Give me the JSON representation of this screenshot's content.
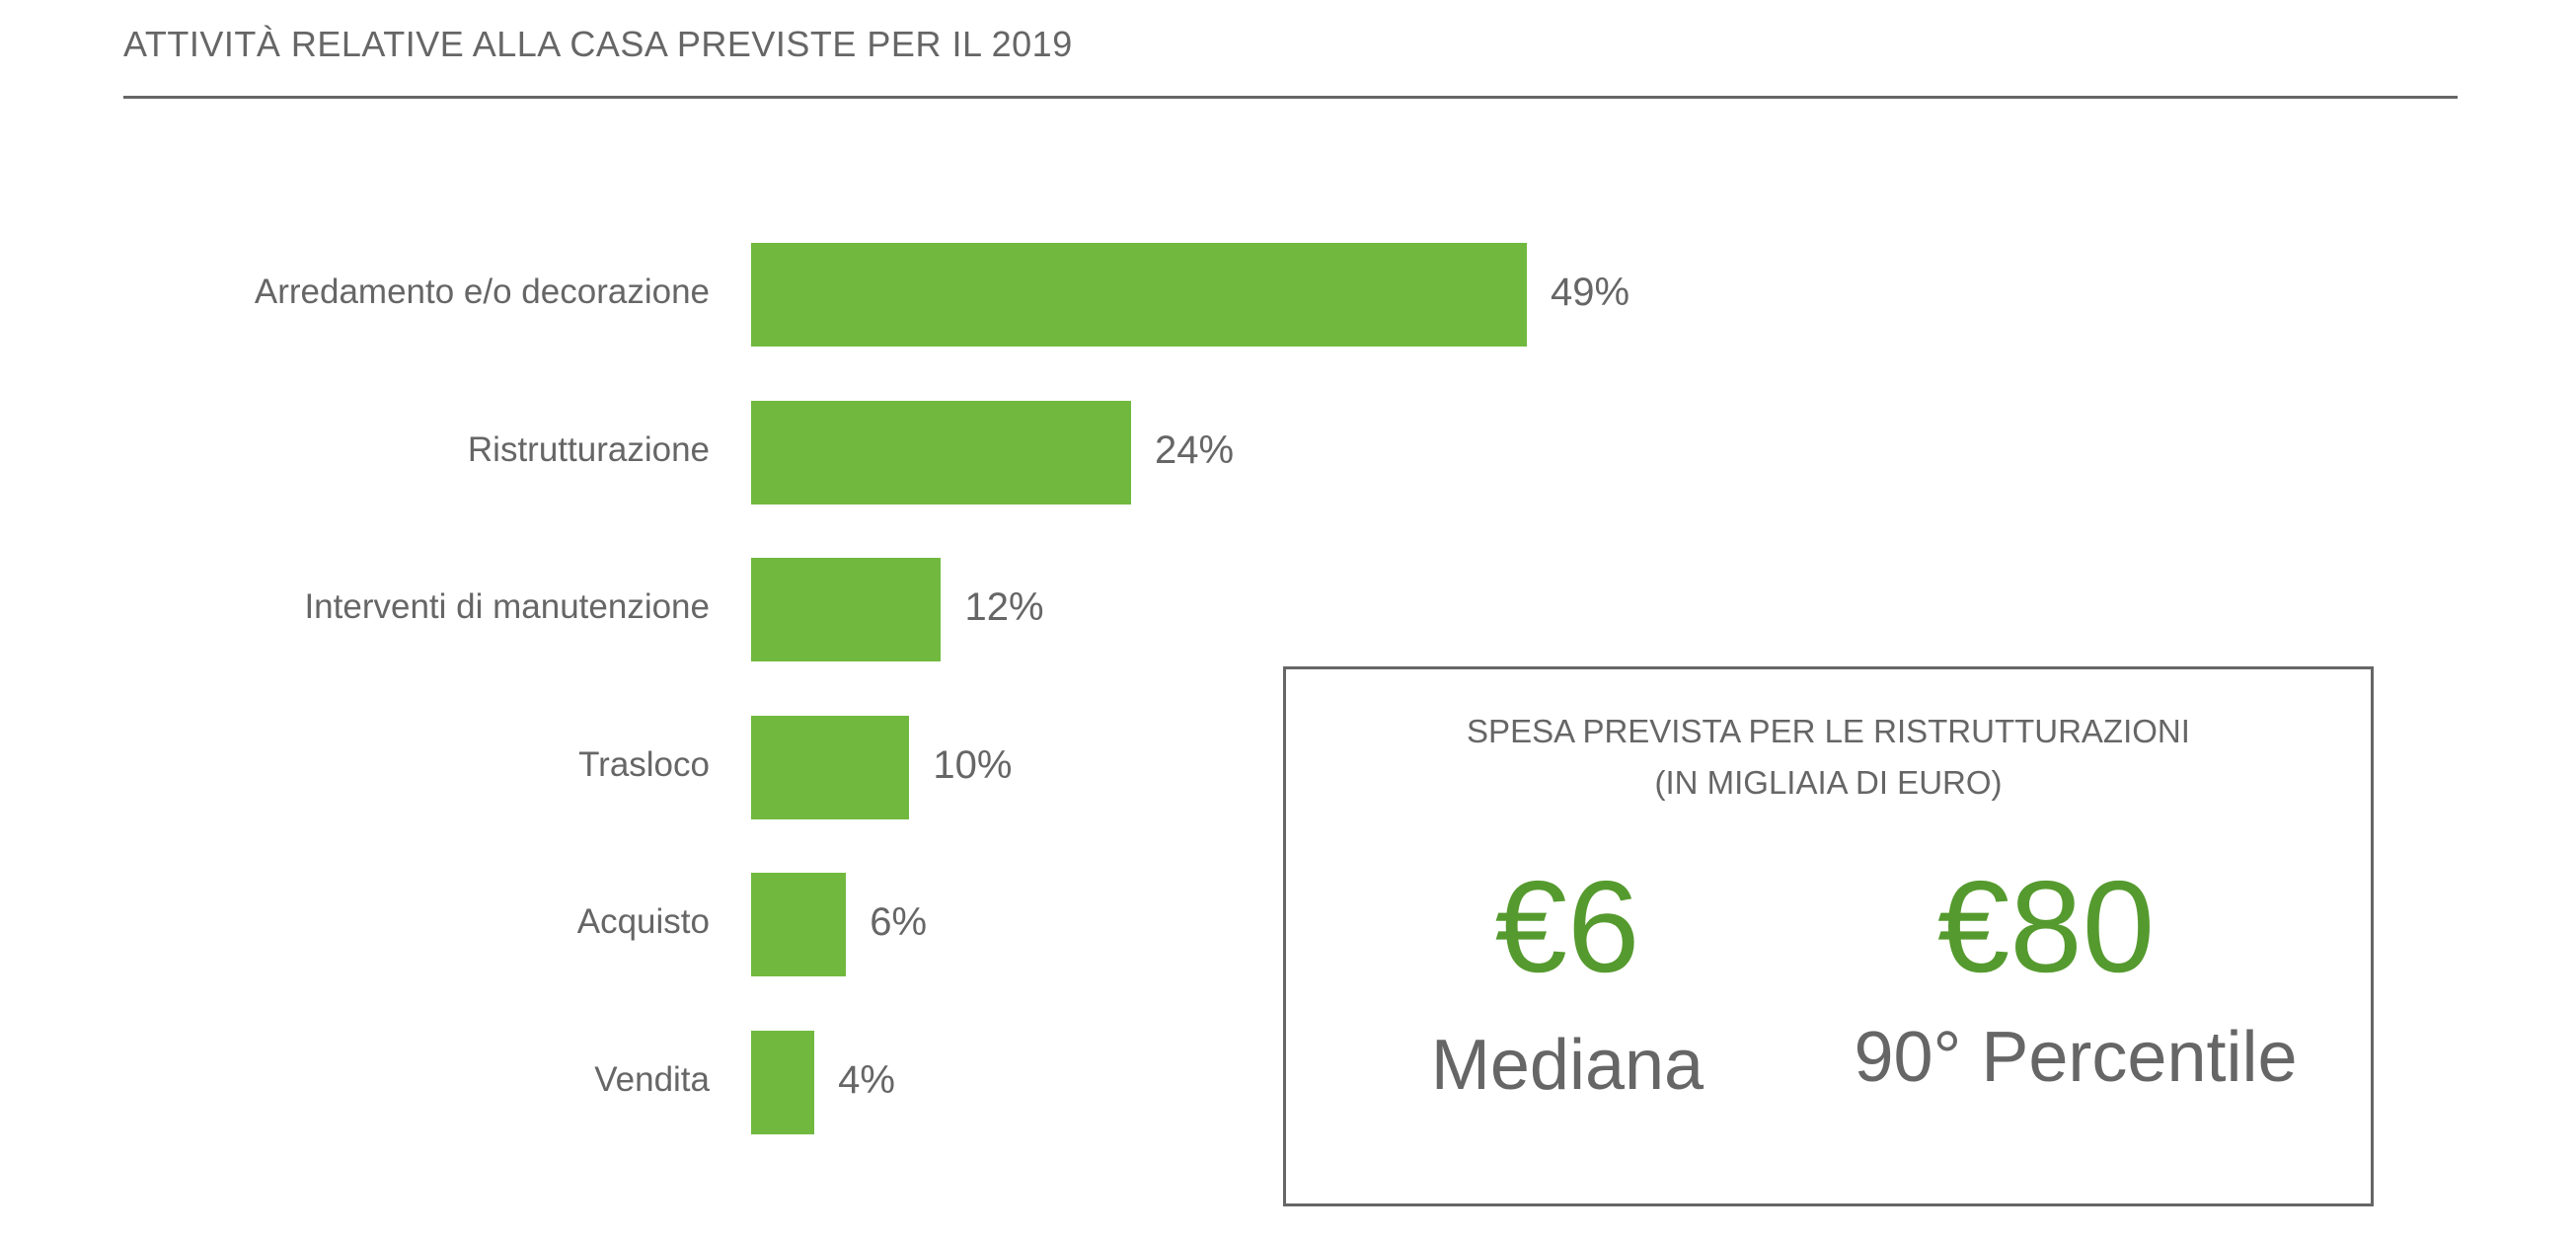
{
  "header": {
    "title": "ATTIVITÀ RELATIVE ALLA CASA PREVISTE PER IL 2019"
  },
  "chart_data": {
    "type": "bar",
    "orientation": "horizontal",
    "title": "ATTIVITÀ RELATIVE ALLA CASA PREVISTE PER IL 2019",
    "categories": [
      "Arredamento e/o decorazione",
      "Ristrutturazione",
      "Interventi di manutenzione",
      "Trasloco",
      "Acquisto",
      "Vendita"
    ],
    "values": [
      49,
      24,
      12,
      10,
      6,
      4
    ],
    "value_labels": [
      "49%",
      "24%",
      "12%",
      "10%",
      "6%",
      "4%"
    ],
    "xlabel": "",
    "ylabel": "",
    "xlim": [
      0,
      49
    ],
    "grid": false,
    "bar_color": "#70b93e"
  },
  "callout": {
    "title_line1": "SPESA PREVISTA PER LE RISTRUTTURAZIONI",
    "title_line2": "(IN MIGLIAIA DI EURO)",
    "median_value": "€6",
    "median_label": "Mediana",
    "p90_value": "€80",
    "p90_label": "90° Percentile",
    "value_color": "#559a2e"
  }
}
